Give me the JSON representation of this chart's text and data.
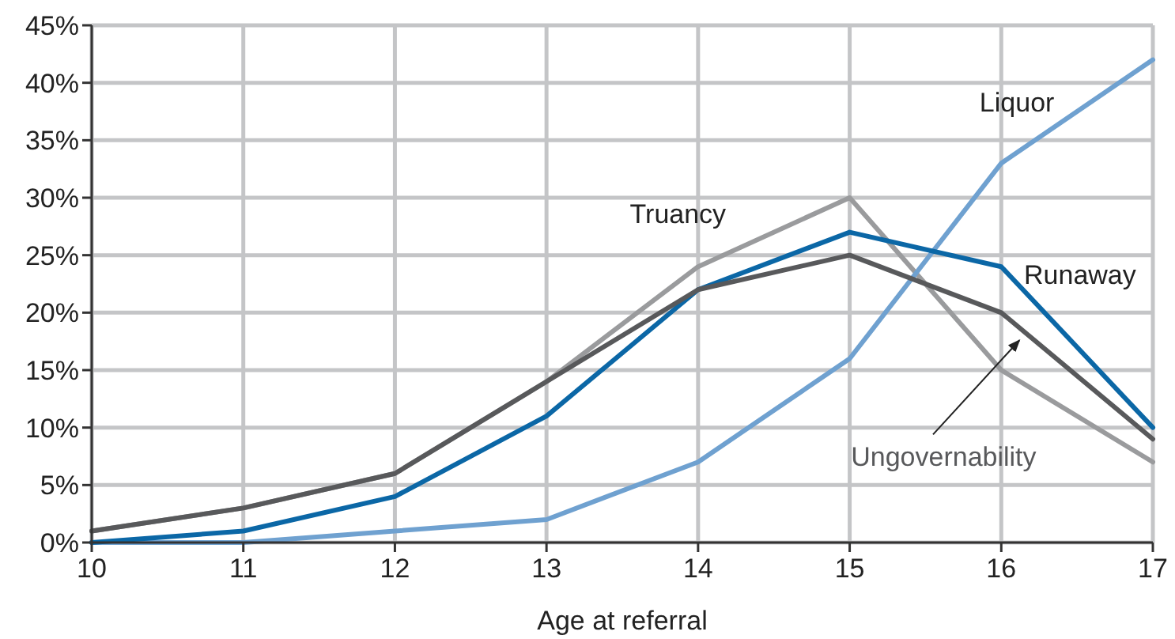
{
  "chart_data": {
    "type": "line",
    "xlabel": "Age at referral",
    "x": [
      10,
      11,
      12,
      13,
      14,
      15,
      16,
      17
    ],
    "series": [
      {
        "name": "Truancy",
        "color": "#9a9b9d",
        "values": [
          1,
          3,
          6,
          14,
          24,
          30,
          15,
          7
        ]
      },
      {
        "name": "Liquor",
        "color": "#6fa1d0",
        "values": [
          0,
          0,
          1,
          2,
          7,
          16,
          33,
          42
        ]
      },
      {
        "name": "Runaway",
        "color": "#0b67a6",
        "values": [
          0,
          1,
          4,
          11,
          22,
          27,
          24,
          10
        ]
      },
      {
        "name": "Ungovernability",
        "color": "#58595b",
        "values": [
          1,
          3,
          6,
          14,
          22,
          25,
          20,
          9
        ]
      }
    ],
    "xlim": [
      10,
      17
    ],
    "xticks": [
      10,
      11,
      12,
      13,
      14,
      15,
      16,
      17
    ],
    "ylim": [
      0,
      45
    ],
    "yticks": [
      {
        "value": 0,
        "label": "0%"
      },
      {
        "value": 5,
        "label": "5%"
      },
      {
        "value": 10,
        "label": "10%"
      },
      {
        "value": 15,
        "label": "15%"
      },
      {
        "value": 20,
        "label": "20%"
      },
      {
        "value": 25,
        "label": "25%"
      },
      {
        "value": 30,
        "label": "30%"
      },
      {
        "value": 35,
        "label": "35%"
      },
      {
        "value": 40,
        "label": "40%"
      },
      {
        "value": 45,
        "label": "45%"
      }
    ],
    "grid": true,
    "marker": "none",
    "line_style": "solid"
  }
}
